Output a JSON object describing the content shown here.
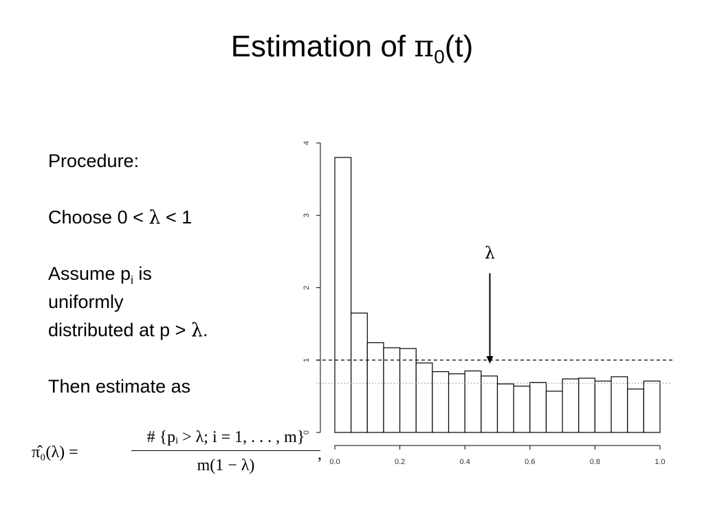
{
  "slide": {
    "title_main": "Estimation of ",
    "title_symbol": "π",
    "title_sub": "0",
    "title_tail": "(t)"
  },
  "text": {
    "line1": "Procedure:",
    "line2_pre": "Choose 0 < ",
    "line2_sym": "λ",
    "line2_post": " < 1",
    "line3_pre": "Assume p",
    "line3_sub": "i",
    "line3_post": " is",
    "line4": "uniformly",
    "line5_pre": "distributed at p > ",
    "line5_sym": "λ",
    "line5_post": ".",
    "line6": "Then estimate as"
  },
  "formula": {
    "lhs": "π̂₀(λ) =",
    "numerator": "# {pᵢ > λ; i = 1, . . . , m}",
    "denominator": "m(1 − λ)",
    "comma": ","
  },
  "chart_data": {
    "type": "bar",
    "bin_edges": [
      0.0,
      0.05,
      0.1,
      0.15,
      0.2,
      0.25,
      0.3,
      0.35,
      0.4,
      0.45,
      0.5,
      0.55,
      0.6,
      0.65,
      0.7,
      0.75,
      0.8,
      0.85,
      0.9,
      0.95,
      1.0
    ],
    "values": [
      3.8,
      1.65,
      1.24,
      1.17,
      1.16,
      0.96,
      0.84,
      0.81,
      0.85,
      0.78,
      0.67,
      0.64,
      0.69,
      0.57,
      0.74,
      0.75,
      0.71,
      0.77,
      0.6,
      0.71
    ],
    "xlim": [
      0,
      1
    ],
    "ylim": [
      0,
      4
    ],
    "x_ticks": [
      "0.0",
      "0.2",
      "0.4",
      "0.6",
      "0.8",
      "1.0"
    ],
    "y_ticks": [
      "0",
      "1",
      "2",
      "3",
      "4"
    ],
    "reference_lines": [
      {
        "style": "dashed",
        "y": 1.0
      },
      {
        "style": "dotted",
        "y": 0.68
      }
    ],
    "annotation": {
      "label": "λ",
      "x": 0.5,
      "arrow_top_y": 2.2,
      "arrow_bottom_y": 0.95
    },
    "grid": false
  }
}
